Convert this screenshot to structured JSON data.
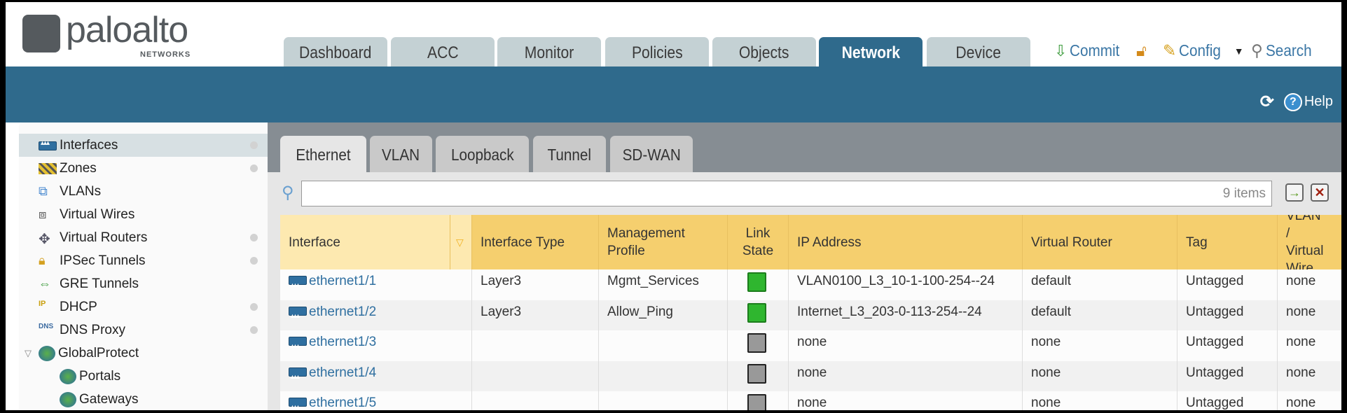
{
  "brand": {
    "name": "paloalto",
    "sub": "NETWORKS"
  },
  "main_tabs": [
    "Dashboard",
    "ACC",
    "Monitor",
    "Policies",
    "Objects",
    "Network",
    "Device"
  ],
  "active_main_tab": "Network",
  "toolbar": {
    "commit": "Commit",
    "config": "Config",
    "search": "Search",
    "help": "Help"
  },
  "sidebar": {
    "items": [
      {
        "label": "Interfaces",
        "icon": "interfaces-icon",
        "dot": true,
        "selected": true
      },
      {
        "label": "Zones",
        "icon": "zones-icon",
        "dot": true
      },
      {
        "label": "VLANs",
        "icon": "vlans-icon",
        "dot": false
      },
      {
        "label": "Virtual Wires",
        "icon": "virtual-wires-icon",
        "dot": false
      },
      {
        "label": "Virtual Routers",
        "icon": "virtual-routers-icon",
        "dot": true
      },
      {
        "label": "IPSec Tunnels",
        "icon": "ipsec-tunnels-icon",
        "dot": true
      },
      {
        "label": "GRE Tunnels",
        "icon": "gre-tunnels-icon",
        "dot": false
      },
      {
        "label": "DHCP",
        "icon": "dhcp-icon",
        "dot": true
      },
      {
        "label": "DNS Proxy",
        "icon": "dns-proxy-icon",
        "dot": true
      },
      {
        "label": "GlobalProtect",
        "icon": "globalprotect-icon",
        "dot": false,
        "expanded": true
      },
      {
        "label": "Portals",
        "icon": "portals-icon",
        "dot": false,
        "child": true
      },
      {
        "label": "Gateways",
        "icon": "gateways-icon",
        "dot": false,
        "child": true
      }
    ]
  },
  "sub_tabs": [
    "Ethernet",
    "VLAN",
    "Loopback",
    "Tunnel",
    "SD-WAN"
  ],
  "active_sub_tab": "Ethernet",
  "filter": {
    "value": "",
    "count": "9 items"
  },
  "table": {
    "columns": [
      "Interface",
      "Interface Type",
      "Management Profile",
      "Link State",
      "IP Address",
      "Virtual Router",
      "Tag",
      "VLAN / Virtual Wire"
    ],
    "rows": [
      {
        "interface": "ethernet1/1",
        "type": "Layer3",
        "profile": "Mgmt_Services",
        "link": "up",
        "ip": "VLAN0100_L3_10-1-100-254--24",
        "vr": "default",
        "tag": "Untagged",
        "vlan": "none"
      },
      {
        "interface": "ethernet1/2",
        "type": "Layer3",
        "profile": "Allow_Ping",
        "link": "up",
        "ip": "Internet_L3_203-0-113-254--24",
        "vr": "default",
        "tag": "Untagged",
        "vlan": "none"
      },
      {
        "interface": "ethernet1/3",
        "type": "",
        "profile": "",
        "link": "down",
        "ip": "none",
        "vr": "none",
        "tag": "Untagged",
        "vlan": "none"
      },
      {
        "interface": "ethernet1/4",
        "type": "",
        "profile": "",
        "link": "down",
        "ip": "none",
        "vr": "none",
        "tag": "Untagged",
        "vlan": "none"
      },
      {
        "interface": "ethernet1/5",
        "type": "",
        "profile": "",
        "link": "down",
        "ip": "none",
        "vr": "none",
        "tag": "Untagged",
        "vlan": "none"
      }
    ]
  },
  "colors": {
    "header_blue": "#2f6a8c",
    "table_header": "#f5cf6e",
    "link": "#2f6fa0",
    "link_up": "#2fb62f",
    "link_down": "#999999"
  }
}
